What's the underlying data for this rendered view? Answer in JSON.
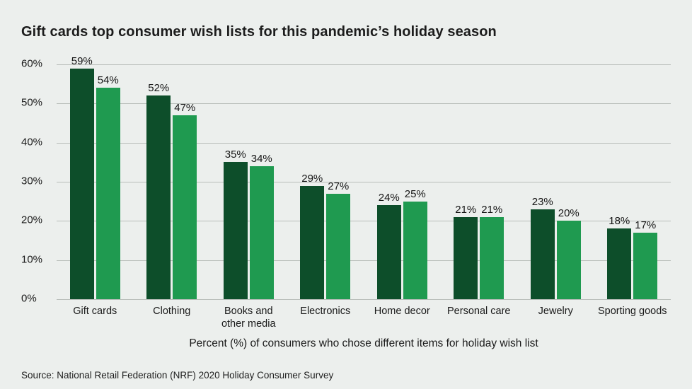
{
  "title": "Gift cards top consumer wish lists for this pandemic’s holiday season",
  "source": "Source: National Retail Federation (NRF) 2020 Holiday Consumer Survey",
  "colors": {
    "background": "#ecefed",
    "grid": "#b9beba",
    "text": "#1a1a1a",
    "series1": "#0d4e2a",
    "series2": "#1f9a50"
  },
  "chart_data": {
    "type": "bar",
    "title": "Gift cards top consumer wish lists for this pandemic’s holiday season",
    "categories": [
      "Gift cards",
      "Clothing",
      "Books and other media",
      "Electronics",
      "Home decor",
      "Personal care",
      "Jewelry",
      "Sporting goods"
    ],
    "series": [
      {
        "name": "dark-green-series",
        "color": "#0d4e2a",
        "values": [
          59,
          52,
          35,
          29,
          24,
          21,
          23,
          18
        ]
      },
      {
        "name": "light-green-series",
        "color": "#1f9a50",
        "values": [
          54,
          47,
          34,
          27,
          25,
          21,
          20,
          17
        ]
      }
    ],
    "value_label_suffix": "%",
    "xlabel": "Percent (%) of consumers who chose different items for holiday wish list",
    "ylabel": "",
    "ylim": [
      0,
      60
    ],
    "ytick_step": 10,
    "ytick_suffix": "%",
    "grid": true,
    "legend": "none"
  }
}
